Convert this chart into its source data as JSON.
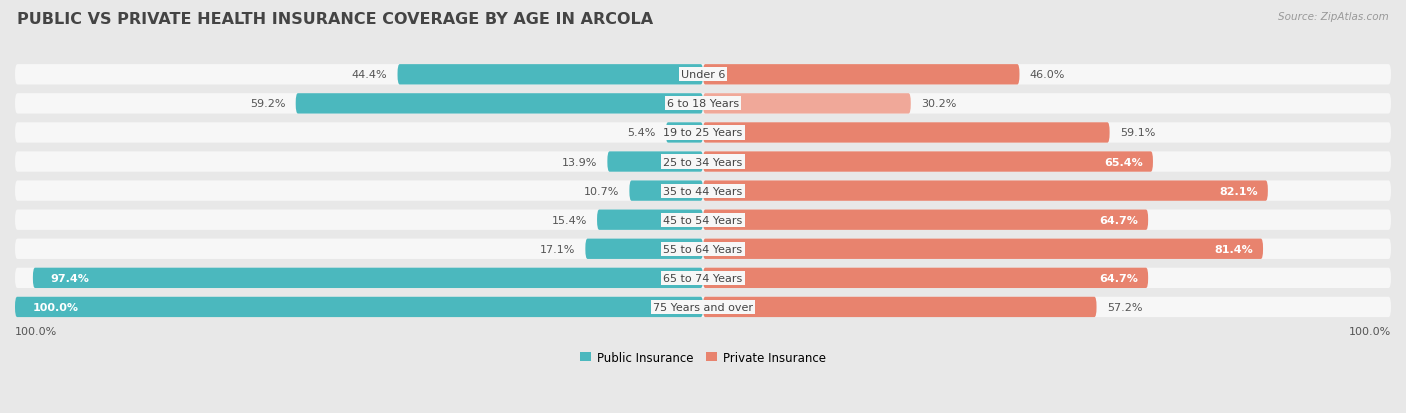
{
  "title": "PUBLIC VS PRIVATE HEALTH INSURANCE COVERAGE BY AGE IN ARCOLA",
  "source": "Source: ZipAtlas.com",
  "categories": [
    "Under 6",
    "6 to 18 Years",
    "19 to 25 Years",
    "25 to 34 Years",
    "35 to 44 Years",
    "45 to 54 Years",
    "55 to 64 Years",
    "65 to 74 Years",
    "75 Years and over"
  ],
  "public_values": [
    44.4,
    59.2,
    5.4,
    13.9,
    10.7,
    15.4,
    17.1,
    97.4,
    100.0
  ],
  "private_values": [
    46.0,
    30.2,
    59.1,
    65.4,
    82.1,
    64.7,
    81.4,
    64.7,
    57.2
  ],
  "public_color": "#4BB8BE",
  "private_color": "#E8836E",
  "private_color_light": "#F0A899",
  "background_color": "#e8e8e8",
  "bar_bg_color": "#f7f7f7",
  "bar_height": 0.7,
  "title_fontsize": 11.5,
  "label_fontsize": 8.0,
  "value_fontsize": 8.0,
  "legend_fontsize": 8.5,
  "source_fontsize": 7.5,
  "value_inside_threshold_pub": 85,
  "value_inside_threshold_pri": 62,
  "bottom_label": "100.0%"
}
